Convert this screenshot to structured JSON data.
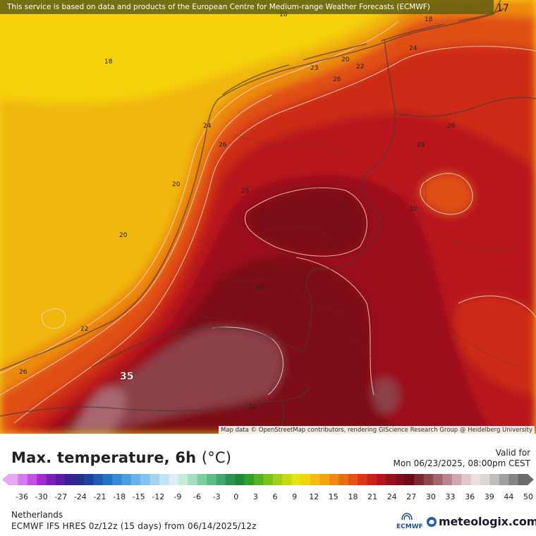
{
  "notice": "This service is based on data and products of the European Centre for Medium-range Weather Forecasts (ECMWF)",
  "attribution": "Map data © OpenStreetMap contributors, rendering GIScience Research Group @ Heidelberg University",
  "title": "Max. temperature, 6h",
  "unit": "(°C)",
  "valid_label": "Valid for",
  "valid_date": "Mon 06/23/2025, 08:00pm CEST",
  "region": "Netherlands",
  "model": "ECMWF IFS HRES 0z/12z (15 days) from  06/14/2025/12z",
  "logo_text": "ECMWF",
  "brand": "meteologix.com",
  "map_labels": [
    "17",
    "18",
    "18",
    "18",
    "24",
    "20",
    "22",
    "23",
    "26",
    "24",
    "26",
    "26",
    "28",
    "26",
    "20",
    "30",
    "20",
    "30",
    "22",
    "26",
    "35",
    "32"
  ],
  "scale_ticks": [
    "-36",
    "-30",
    "-27",
    "-24",
    "-21",
    "-18",
    "-15",
    "-12",
    "-9",
    "-6",
    "-3",
    "0",
    "3",
    "6",
    "9",
    "12",
    "15",
    "18",
    "21",
    "24",
    "27",
    "30",
    "33",
    "36",
    "39",
    "44",
    "50"
  ],
  "scale_colors": [
    "#e8a7f5",
    "#d77cf0",
    "#c552e6",
    "#a52bd5",
    "#7e1fc0",
    "#5a1da8",
    "#3b1f96",
    "#23308f",
    "#1d43a0",
    "#1f5ab6",
    "#2472c8",
    "#3589d6",
    "#4c9ee0",
    "#68b2e8",
    "#86c4ef",
    "#a5d4f3",
    "#c2e3f6",
    "#dcf0f5",
    "#c7ebd8",
    "#a4dfc0",
    "#7dcfa1",
    "#5cbd86",
    "#3fa96e",
    "#2a9453",
    "#1e8a3a",
    "#30a02b",
    "#55b321",
    "#7cc319",
    "#a2d014",
    "#c6da10",
    "#e6e30f",
    "#f3d50d",
    "#f6bd0c",
    "#f6a30c",
    "#f2880f",
    "#ec6c12",
    "#e35216",
    "#d63a18",
    "#c5261a",
    "#b0161b",
    "#99101b",
    "#830d1a",
    "#6e0c19",
    "#7a2a33",
    "#8e4750",
    "#a4656d",
    "#ba868d",
    "#cfa8ad",
    "#e2c7ca",
    "#efdfe0",
    "#d8d8d8",
    "#bdbdbd",
    "#a0a0a0",
    "#858585",
    "#6b6b6b"
  ],
  "fill_colors": {
    "yellow": "#f5d20c",
    "amber": "#f1b70e",
    "orange": "#ec8a10",
    "redorange": "#e05017",
    "red": "#cc2c18",
    "darkred": "#b8161b",
    "crimson": "#9c101b",
    "maroon": "#7d0c17",
    "mauve": "#8c4149",
    "pink": "#a8666e"
  }
}
